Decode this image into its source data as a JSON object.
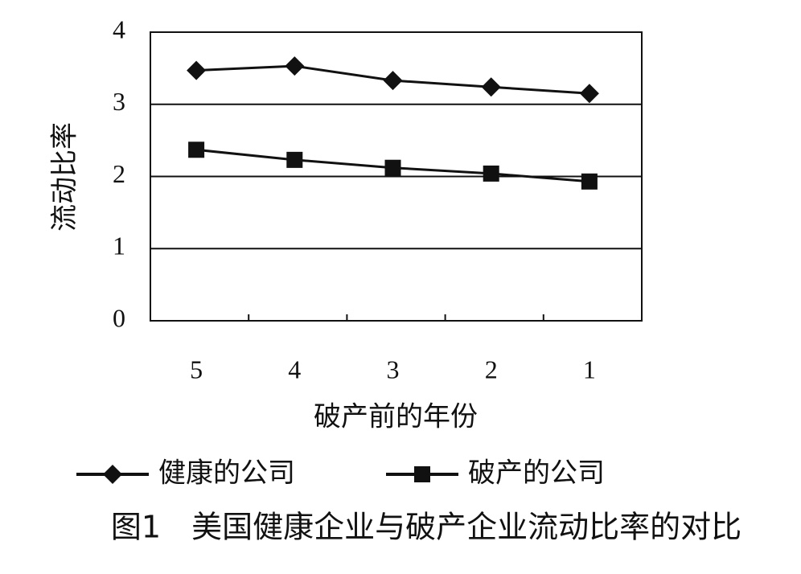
{
  "chart_data": {
    "type": "line",
    "title": "图1　美国健康企业与破产企业流动比率的对比",
    "x_label": "破产前的年份",
    "y_label": "流动比率",
    "categories": [
      "5",
      "4",
      "3",
      "2",
      "1"
    ],
    "series": [
      {
        "name": "健康的公司",
        "color": "#111111",
        "marker": "diamond",
        "values": [
          3.47,
          3.53,
          3.33,
          3.24,
          3.15
        ]
      },
      {
        "name": "破产的公司",
        "color": "#111111",
        "marker": "square",
        "values": [
          2.37,
          2.23,
          2.12,
          2.04,
          1.93
        ]
      }
    ],
    "ylim": [
      0,
      4
    ],
    "yticks": [
      0,
      1,
      2,
      3,
      4
    ],
    "grid": true
  }
}
